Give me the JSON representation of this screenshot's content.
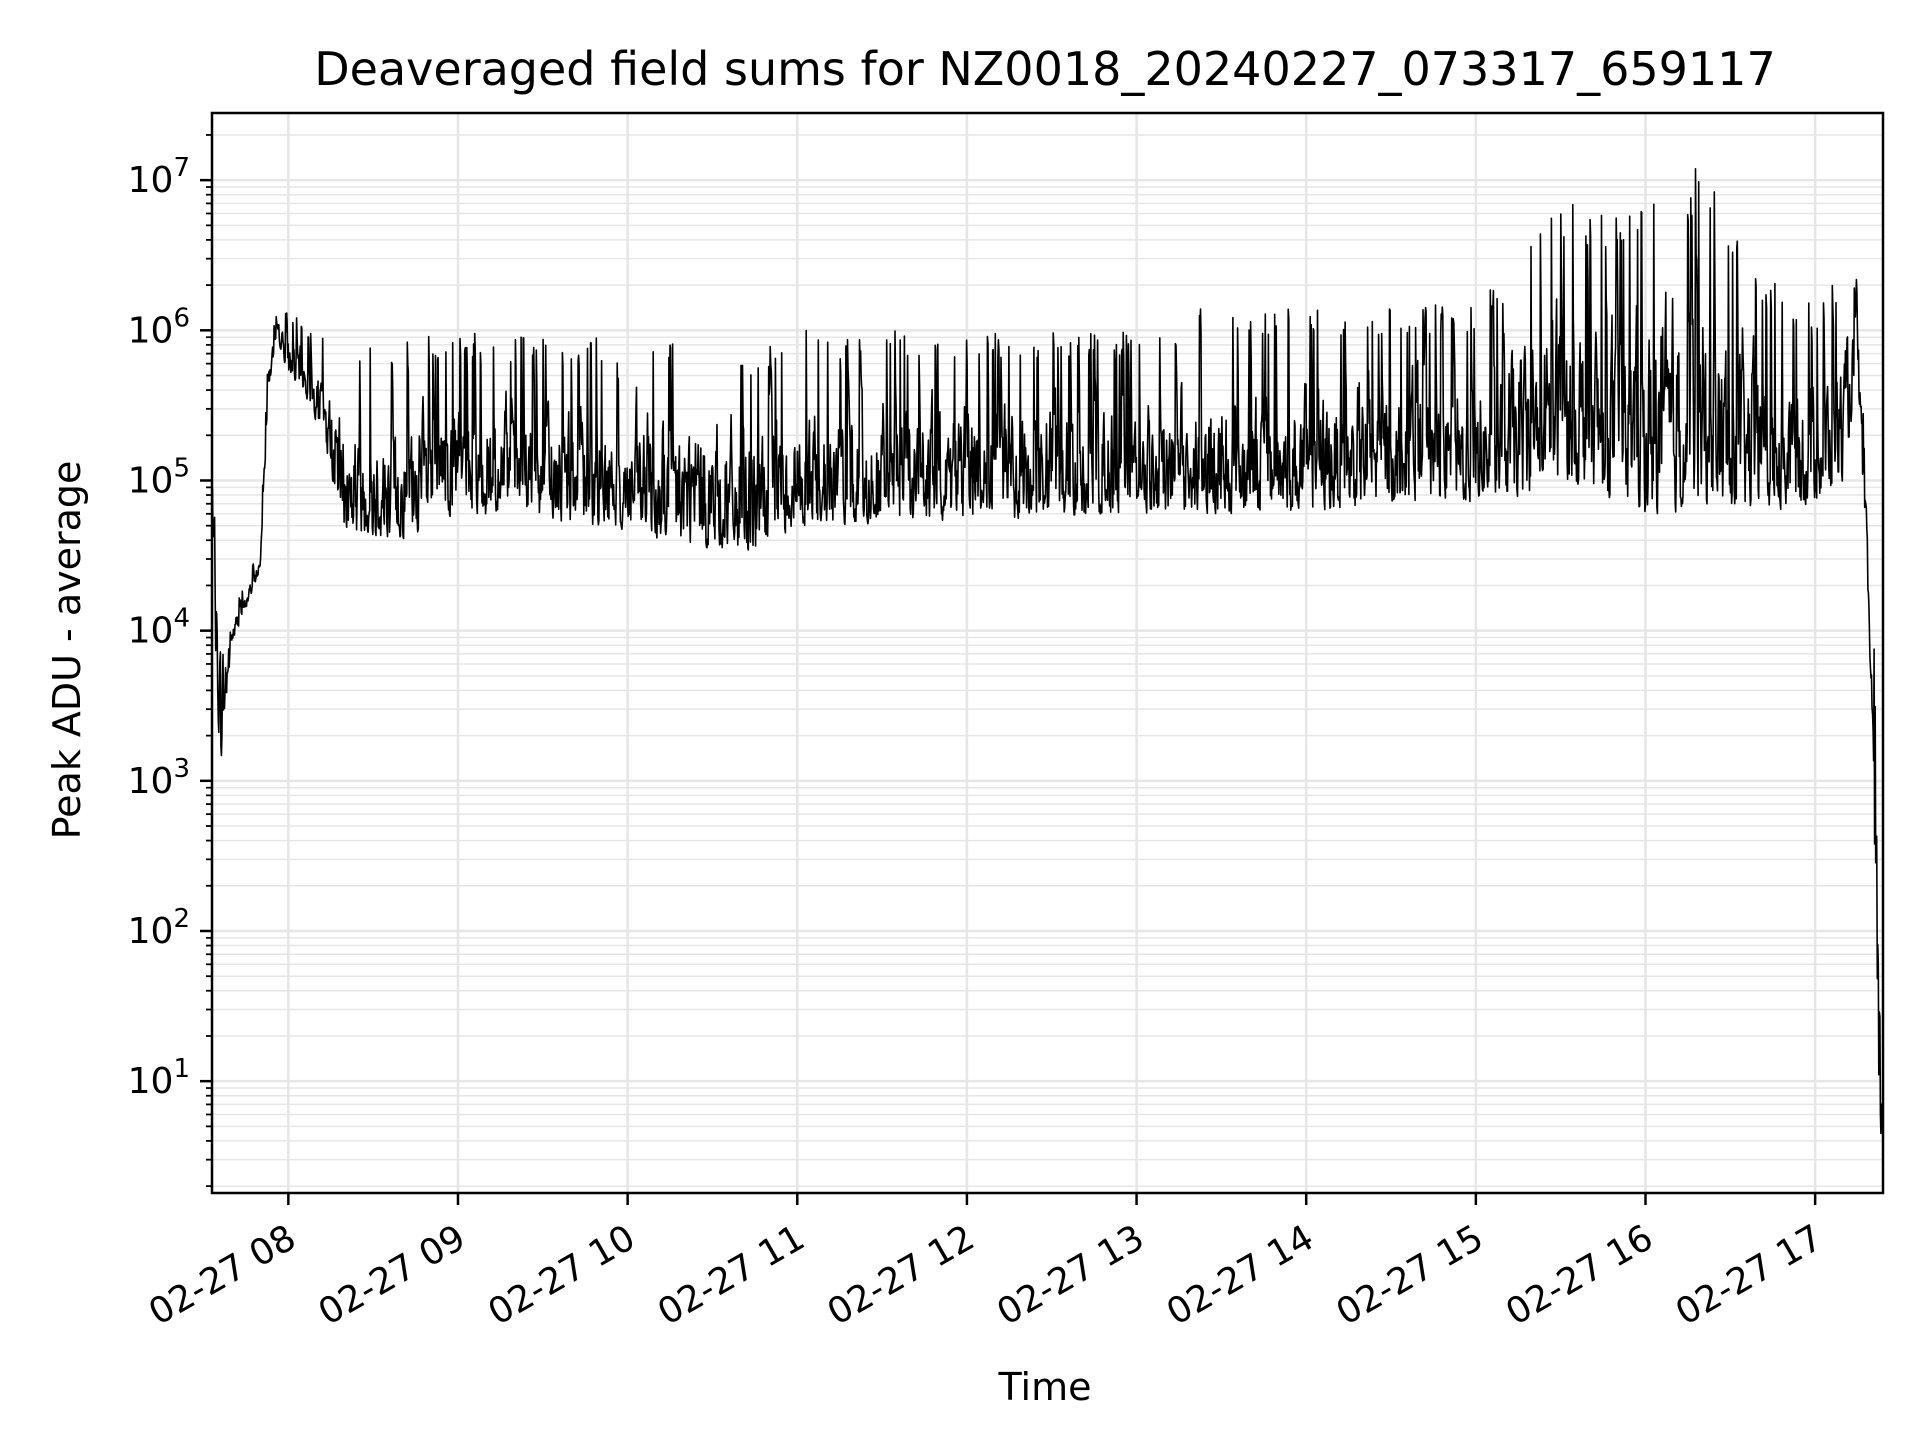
{
  "chart_data": {
    "type": "line",
    "title": "Deaveraged field sums for NZ0018_20240227_073317_659117",
    "xlabel": "Time",
    "ylabel": "Peak ADU - average",
    "yscale": "log",
    "grid": "major and minor",
    "legend": "none",
    "line_color": "#000000",
    "grid_color": "#e6e6e6",
    "xlim": [
      "2024-02-27 07:33",
      "2024-02-27 17:24"
    ],
    "ylim": [
      1.8,
      28000000
    ],
    "x_ticks": [
      {
        "value": "2024-02-27 08:00",
        "label": "02-27 08"
      },
      {
        "value": "2024-02-27 09:00",
        "label": "02-27 09"
      },
      {
        "value": "2024-02-27 10:00",
        "label": "02-27 10"
      },
      {
        "value": "2024-02-27 11:00",
        "label": "02-27 11"
      },
      {
        "value": "2024-02-27 12:00",
        "label": "02-27 12"
      },
      {
        "value": "2024-02-27 13:00",
        "label": "02-27 13"
      },
      {
        "value": "2024-02-27 14:00",
        "label": "02-27 14"
      },
      {
        "value": "2024-02-27 15:00",
        "label": "02-27 15"
      },
      {
        "value": "2024-02-27 16:00",
        "label": "02-27 16"
      },
      {
        "value": "2024-02-27 17:00",
        "label": "02-27 17"
      }
    ],
    "y_ticks": [
      {
        "value": 10,
        "base": "10",
        "exp": "1"
      },
      {
        "value": 100,
        "base": "10",
        "exp": "2"
      },
      {
        "value": 1000,
        "base": "10",
        "exp": "3"
      },
      {
        "value": 10000,
        "base": "10",
        "exp": "4"
      },
      {
        "value": 100000,
        "base": "10",
        "exp": "5"
      },
      {
        "value": 1000000,
        "base": "10",
        "exp": "6"
      },
      {
        "value": 10000000,
        "base": "10",
        "exp": "7"
      }
    ],
    "series": [
      {
        "envelope": [
          {
            "x": "2024-02-27 07:33",
            "low": 20000,
            "high": 100000
          },
          {
            "x": "2024-02-27 07:36",
            "low": 1100,
            "high": 45000
          },
          {
            "x": "2024-02-27 07:40",
            "low": 8000,
            "high": 15000
          },
          {
            "x": "2024-02-27 07:45",
            "low": 14000,
            "high": 20000
          },
          {
            "x": "2024-02-27 07:50",
            "low": 25000,
            "high": 40000
          },
          {
            "x": "2024-02-27 07:53",
            "low": 400000,
            "high": 800000
          },
          {
            "x": "2024-02-27 07:56",
            "low": 900000,
            "high": 1300000
          },
          {
            "x": "2024-02-27 08:00",
            "low": 500000,
            "high": 1400000
          },
          {
            "x": "2024-02-27 08:05",
            "low": 400000,
            "high": 1100000
          },
          {
            "x": "2024-02-27 08:12",
            "low": 200000,
            "high": 900000
          },
          {
            "x": "2024-02-27 08:20",
            "low": 45000,
            "high": 800000
          },
          {
            "x": "2024-02-27 08:40",
            "low": 40000,
            "high": 900000
          },
          {
            "x": "2024-02-27 09:00",
            "low": 60000,
            "high": 1000000
          },
          {
            "x": "2024-02-27 09:30",
            "low": 55000,
            "high": 900000
          },
          {
            "x": "2024-02-27 10:00",
            "low": 45000,
            "high": 900000
          },
          {
            "x": "2024-02-27 10:30",
            "low": 35000,
            "high": 900000
          },
          {
            "x": "2024-02-27 10:45",
            "low": 33000,
            "high": 700000
          },
          {
            "x": "2024-02-27 11:00",
            "low": 50000,
            "high": 1000000
          },
          {
            "x": "2024-02-27 11:30",
            "low": 50000,
            "high": 1000000
          },
          {
            "x": "2024-02-27 12:00",
            "low": 55000,
            "high": 1000000
          },
          {
            "x": "2024-02-27 12:30",
            "low": 55000,
            "high": 1000000
          },
          {
            "x": "2024-02-27 13:00",
            "low": 60000,
            "high": 1000000
          },
          {
            "x": "2024-02-27 13:30",
            "low": 60000,
            "high": 1600000
          },
          {
            "x": "2024-02-27 14:00",
            "low": 60000,
            "high": 1400000
          },
          {
            "x": "2024-02-27 14:30",
            "low": 70000,
            "high": 1500000
          },
          {
            "x": "2024-02-27 15:00",
            "low": 70000,
            "high": 1500000
          },
          {
            "x": "2024-02-27 15:20",
            "low": 80000,
            "high": 4000000
          },
          {
            "x": "2024-02-27 15:30",
            "low": 100000,
            "high": 8000000
          },
          {
            "x": "2024-02-27 15:45",
            "low": 80000,
            "high": 6000000
          },
          {
            "x": "2024-02-27 16:00",
            "low": 60000,
            "high": 7000000
          },
          {
            "x": "2024-02-27 16:10",
            "low": 60000,
            "high": 13000000
          },
          {
            "x": "2024-02-27 16:20",
            "low": 70000,
            "high": 12000000
          },
          {
            "x": "2024-02-27 16:40",
            "low": 60000,
            "high": 2500000
          },
          {
            "x": "2024-02-27 17:00",
            "low": 70000,
            "high": 1500000
          },
          {
            "x": "2024-02-27 17:10",
            "low": 100000,
            "high": 2500000
          },
          {
            "x": "2024-02-27 17:15",
            "low": 500000,
            "high": 2300000
          },
          {
            "x": "2024-02-27 17:18",
            "low": 30000,
            "high": 100000
          },
          {
            "x": "2024-02-27 17:20",
            "low": 2800,
            "high": 18000
          },
          {
            "x": "2024-02-27 17:22",
            "low": 4,
            "high": 3000
          },
          {
            "x": "2024-02-27 17:24",
            "low": 4,
            "high": 5
          }
        ]
      }
    ]
  }
}
